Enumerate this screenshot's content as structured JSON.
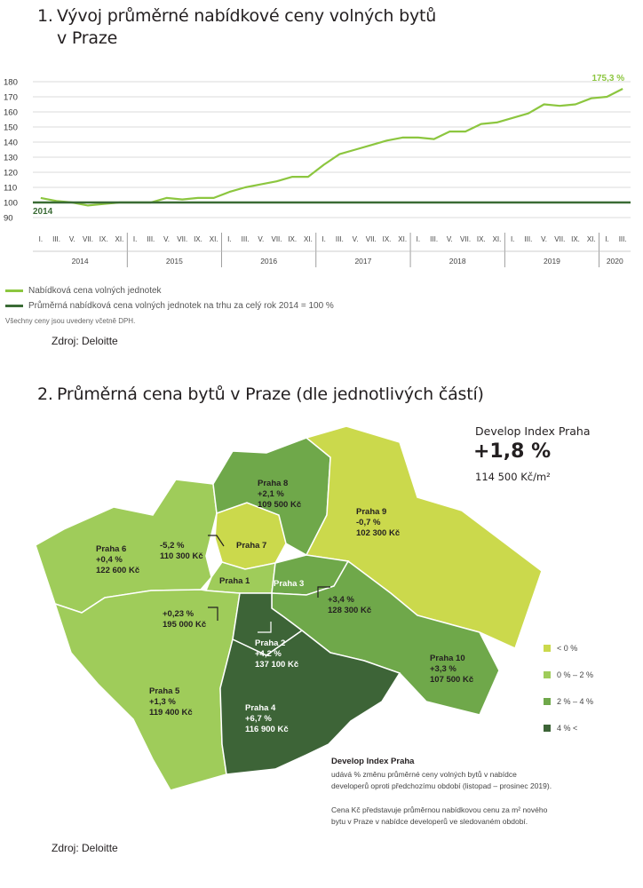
{
  "section1": {
    "number": "1.",
    "title_line1": "Vývoj průměrné nabídkové ceny volných bytů",
    "title_line2": "v Praze",
    "legend": [
      {
        "label": "Nabídková cena volných jednotek",
        "color": "#8cc63f"
      },
      {
        "label": "Průměrná nabídková cena volných jednotek na trhu za celý rok 2014 = 100 %",
        "color": "#3a6b35"
      }
    ],
    "note": "Všechny ceny jsou uvedeny včetně DPH.",
    "source": "Zdroj: Deloitte"
  },
  "chart_data": {
    "type": "line",
    "y_ticks": [
      90,
      100,
      110,
      120,
      130,
      140,
      150,
      160,
      170,
      180
    ],
    "ylim": [
      90,
      180
    ],
    "grid": true,
    "month_labels": [
      "I.",
      "III.",
      "V.",
      "VII.",
      "IX.",
      "XI.",
      "I.",
      "III.",
      "V.",
      "VII.",
      "IX.",
      "XI.",
      "I.",
      "III.",
      "V.",
      "VII.",
      "IX.",
      "XI.",
      "I.",
      "III.",
      "V.",
      "VII.",
      "IX.",
      "XI.",
      "I.",
      "III.",
      "V.",
      "VII.",
      "IX.",
      "XI.",
      "I.",
      "III.",
      "V.",
      "VII.",
      "IX.",
      "XI.",
      "I.",
      "III."
    ],
    "years": [
      "2014",
      "2015",
      "2016",
      "2017",
      "2018",
      "2019",
      "2020"
    ],
    "series": [
      {
        "color": "#8cc63f",
        "values": [
          103,
          101,
          100,
          98,
          99,
          100,
          100,
          100,
          103,
          102,
          103,
          103,
          107,
          110,
          112,
          114,
          117,
          117,
          125,
          132,
          135,
          138,
          141,
          143,
          143,
          142,
          147,
          147,
          152,
          153,
          156,
          159,
          165,
          164,
          165,
          169,
          170,
          175.3
        ]
      },
      {
        "color": "#3a6b35",
        "values": [
          100,
          100,
          100,
          100,
          100,
          100,
          100,
          100,
          100,
          100,
          100,
          100,
          100,
          100,
          100,
          100,
          100,
          100,
          100,
          100,
          100,
          100,
          100,
          100,
          100,
          100,
          100,
          100,
          100,
          100,
          100,
          100,
          100,
          100,
          100,
          100,
          100,
          100
        ]
      }
    ],
    "annotations": {
      "end_label": "175,3 %",
      "baseline_label": "2014"
    }
  },
  "section2": {
    "number": "2.",
    "title": "Průměrná cena bytů v Praze (dle jednotlivých částí)",
    "index_name": "Develop Index Praha",
    "index_change": "+1,8 %",
    "index_price": "114 500 Kč/m²",
    "legend": [
      {
        "label": "< 0 %",
        "color": "#cbd94c"
      },
      {
        "label": "0 % – 2 %",
        "color": "#9fcc5a"
      },
      {
        "label": "2 % – 4 %",
        "color": "#6fa84a"
      },
      {
        "label": "4 % <",
        "color": "#3d6437"
      }
    ],
    "districts": [
      {
        "id": "praha-1",
        "name": "Praha 1",
        "change": "",
        "price": "",
        "color": "#9fcc5a"
      },
      {
        "id": "praha-2",
        "name": "Praha 2",
        "change": "+4,2 %",
        "price": "137 100 Kč",
        "color": "#3d6437"
      },
      {
        "id": "praha-3",
        "name": "Praha 3",
        "change": "",
        "price": "",
        "color": "#6fa84a"
      },
      {
        "id": "praha-4",
        "name": "Praha 4",
        "change": "+6,7 %",
        "price": "116 900 Kč",
        "color": "#3d6437"
      },
      {
        "id": "praha-5",
        "name": "Praha 5",
        "change": "+1,3 %",
        "price": "119 400 Kč",
        "color": "#9fcc5a"
      },
      {
        "id": "praha-6",
        "name": "Praha 6",
        "change": "+0,4 %",
        "price": "122 600 Kč",
        "color": "#9fcc5a"
      },
      {
        "id": "praha-7",
        "name": "Praha 7",
        "change": "",
        "price": "",
        "color": "#cbd94c"
      },
      {
        "id": "praha-8",
        "name": "Praha 8",
        "change": "+2,1 %",
        "price": "109 500 Kč",
        "color": "#6fa84a"
      },
      {
        "id": "praha-9",
        "name": "Praha 9",
        "change": "-0,7 %",
        "price": "102 300 Kč",
        "color": "#cbd94c"
      },
      {
        "id": "praha-10",
        "name": "Praha 10",
        "change": "+3,3 %",
        "price": "107 500 Kč",
        "color": "#6fa84a"
      }
    ],
    "callouts": [
      {
        "id": "praha-7",
        "change": "-5,2 %",
        "price": "110 300 Kč"
      },
      {
        "id": "praha-1",
        "change": "+0,23 %",
        "price": "195 000 Kč"
      },
      {
        "id": "praha-3",
        "change": "+3,4 %",
        "price": "128 300 Kč"
      }
    ],
    "desc_title": "Develop Index Praha",
    "desc_line1": "udává % změnu průměrné ceny volných bytů v nabídce",
    "desc_line2": "developerů oproti předchozímu období (listopad – prosinec 2019).",
    "desc_line3": "Cena Kč představuje průměrnou nabídkovou cenu za m² nového",
    "desc_line4": "bytu v Praze v nabídce developerů ve sledovaném období.",
    "source": "Zdroj: Deloitte"
  }
}
